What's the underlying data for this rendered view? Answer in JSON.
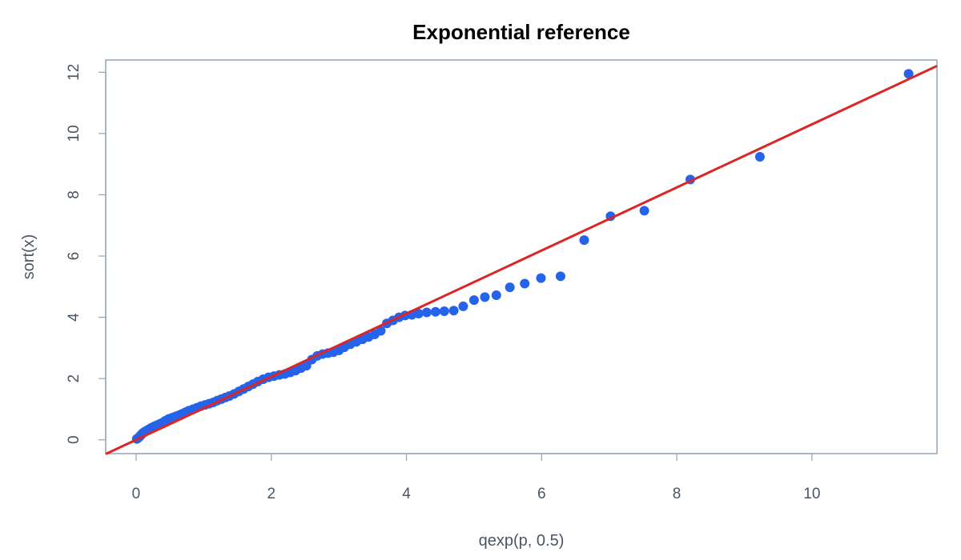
{
  "chart_data": {
    "type": "scatter",
    "title": "Exponential reference",
    "xlabel": "qexp(p, 0.5)",
    "ylabel": "sort(x)",
    "xlim": [
      -0.45,
      11.85
    ],
    "ylim": [
      -0.45,
      12.4
    ],
    "x_ticks": [
      0,
      2,
      4,
      6,
      8,
      10
    ],
    "y_ticks": [
      0,
      2,
      4,
      6,
      8,
      10,
      12
    ],
    "grid": false,
    "colors": {
      "points": "#2563eb",
      "reference_line": "#dc2626",
      "frame": "#94a3b8",
      "text": "#4b5563"
    },
    "series": [
      {
        "points": [
          [
            0.01,
            0.03
          ],
          [
            0.03,
            0.06
          ],
          [
            0.05,
            0.1
          ],
          [
            0.07,
            0.15
          ],
          [
            0.09,
            0.2
          ],
          [
            0.11,
            0.24
          ],
          [
            0.14,
            0.28
          ],
          [
            0.17,
            0.32
          ],
          [
            0.2,
            0.36
          ],
          [
            0.23,
            0.4
          ],
          [
            0.27,
            0.44
          ],
          [
            0.31,
            0.48
          ],
          [
            0.35,
            0.52
          ],
          [
            0.39,
            0.56
          ],
          [
            0.43,
            0.62
          ],
          [
            0.48,
            0.68
          ],
          [
            0.53,
            0.72
          ],
          [
            0.58,
            0.76
          ],
          [
            0.63,
            0.8
          ],
          [
            0.68,
            0.85
          ],
          [
            0.73,
            0.9
          ],
          [
            0.78,
            0.95
          ],
          [
            0.84,
            1.0
          ],
          [
            0.9,
            1.05
          ],
          [
            0.96,
            1.1
          ],
          [
            1.02,
            1.14
          ],
          [
            1.08,
            1.18
          ],
          [
            1.14,
            1.22
          ],
          [
            1.2,
            1.28
          ],
          [
            1.26,
            1.33
          ],
          [
            1.32,
            1.38
          ],
          [
            1.38,
            1.43
          ],
          [
            1.45,
            1.5
          ],
          [
            1.52,
            1.58
          ],
          [
            1.59,
            1.66
          ],
          [
            1.66,
            1.74
          ],
          [
            1.73,
            1.82
          ],
          [
            1.8,
            1.9
          ],
          [
            1.88,
            1.98
          ],
          [
            1.96,
            2.04
          ],
          [
            2.04,
            2.08
          ],
          [
            2.12,
            2.12
          ],
          [
            2.2,
            2.15
          ],
          [
            2.28,
            2.2
          ],
          [
            2.36,
            2.26
          ],
          [
            2.44,
            2.34
          ],
          [
            2.52,
            2.42
          ],
          [
            2.6,
            2.62
          ],
          [
            2.68,
            2.74
          ],
          [
            2.76,
            2.8
          ],
          [
            2.84,
            2.83
          ],
          [
            2.92,
            2.86
          ],
          [
            3.0,
            2.92
          ],
          [
            3.08,
            3.02
          ],
          [
            3.17,
            3.12
          ],
          [
            3.26,
            3.2
          ],
          [
            3.35,
            3.28
          ],
          [
            3.44,
            3.36
          ],
          [
            3.53,
            3.44
          ],
          [
            3.62,
            3.56
          ],
          [
            3.71,
            3.8
          ],
          [
            3.8,
            3.9
          ],
          [
            3.89,
            4.0
          ],
          [
            3.98,
            4.06
          ],
          [
            4.08,
            4.08
          ],
          [
            4.18,
            4.12
          ],
          [
            4.3,
            4.16
          ],
          [
            4.43,
            4.18
          ],
          [
            4.56,
            4.2
          ],
          [
            4.7,
            4.22
          ],
          [
            4.84,
            4.36
          ],
          [
            5.0,
            4.56
          ],
          [
            5.16,
            4.66
          ],
          [
            5.33,
            4.72
          ],
          [
            5.53,
            4.98
          ],
          [
            5.75,
            5.1
          ],
          [
            5.99,
            5.28
          ],
          [
            6.28,
            5.34
          ],
          [
            6.63,
            6.52
          ],
          [
            7.02,
            7.3
          ],
          [
            7.52,
            7.48
          ],
          [
            8.2,
            8.5
          ],
          [
            9.23,
            9.24
          ],
          [
            11.43,
            11.95
          ]
        ]
      }
    ],
    "reference_line": {
      "slope": 1.03,
      "intercept": 0.0
    }
  }
}
